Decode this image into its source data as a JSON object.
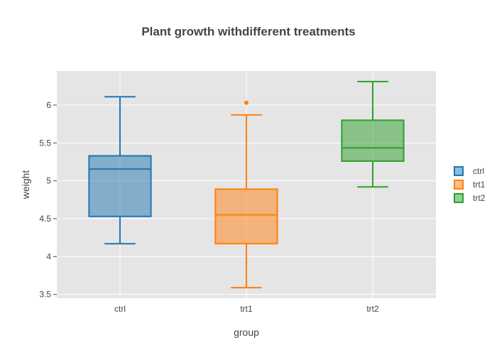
{
  "chart_data": {
    "type": "box",
    "title": "Plant growth withdifferent treatments",
    "xlabel": "group",
    "ylabel": "weight",
    "categories": [
      "ctrl",
      "trt1",
      "trt2"
    ],
    "ylim": [
      3.45,
      6.45
    ],
    "yticks": [
      3.5,
      4,
      4.5,
      5,
      5.5,
      6
    ],
    "ytick_labels": [
      "3.5",
      "4",
      "4.5",
      "5",
      "5.5",
      "6"
    ],
    "grid": true,
    "legend": "right",
    "series": [
      {
        "name": "ctrl",
        "color": "#1f77b4",
        "whisker_low": 4.17,
        "q1": 4.53,
        "median": 5.155,
        "q3": 5.33,
        "whisker_high": 6.11,
        "outliers": []
      },
      {
        "name": "trt1",
        "color": "#ff7f0e",
        "whisker_low": 3.59,
        "q1": 4.17,
        "median": 4.55,
        "q3": 4.89,
        "whisker_high": 5.87,
        "outliers": [
          6.03
        ]
      },
      {
        "name": "trt2",
        "color": "#2ca02c",
        "whisker_low": 4.92,
        "q1": 5.26,
        "median": 5.435,
        "q3": 5.8,
        "whisker_high": 6.31,
        "outliers": []
      }
    ]
  }
}
